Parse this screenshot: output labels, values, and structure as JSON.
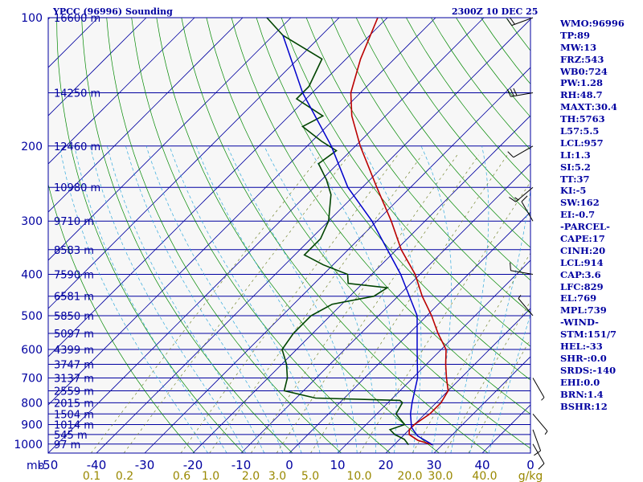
{
  "header": {
    "title": "YPCC (96996) Sounding",
    "datetime": "2300Z 10 DEC 25"
  },
  "indices": [
    "WMO:96996",
    "TP:89",
    "MW:13",
    "FRZ:543",
    "WB0:724",
    "PW:1.28",
    "RH:48.7",
    "MAXT:30.4",
    "TH:5763",
    "L57:5.5",
    "LCL:957",
    "LI:1.3",
    "SI:5.2",
    "TT:37",
    "KI:-5",
    "SW:162",
    "EI:-0.7",
    "-PARCEL-",
    "CAPE:17",
    "CINH:20",
    "LCL:914",
    "CAP:3.6",
    "LFC:829",
    "EL:769",
    "MPL:739",
    "-WIND-",
    "STM:151/7",
    "HEL:-33",
    "SHR-:0.0",
    "SRDS:-140",
    "EHI:0.0",
    "BRN:1.4",
    "BSHR:12"
  ],
  "colors": {
    "isobar": "#0000a0",
    "isotherm": "#0000a0",
    "dry_adiabat": "#008800",
    "moist_adiabat": "#33aadd",
    "mixing_ratio": "#778833",
    "temperature": "#bb0000",
    "dewpoint": "#004400",
    "parcel": "#0000cc",
    "text": "#0000a0",
    "mixing_label": "#998800"
  },
  "chart_data": {
    "type": "line",
    "x_label": "",
    "y_label": "mb",
    "pressure_ticks": [
      100,
      200,
      300,
      400,
      500,
      600,
      700,
      800,
      900,
      1000
    ],
    "temperature_ticks": [
      -50,
      -40,
      -30,
      -20,
      -10,
      0,
      10,
      20,
      30,
      40,
      0
    ],
    "temperature_tick_labels": [
      "-50",
      "-40",
      "-30",
      "-20",
      "-10",
      "0",
      "10",
      "20",
      "30",
      "40",
      "0"
    ],
    "mixing_ratio_labels": [
      "0.1",
      "0.2",
      "0.6",
      "1.0",
      "2.0",
      "3.0",
      "5.0",
      "10.0",
      "20.0",
      "30.0",
      "40.0"
    ],
    "mixing_ratio_unit": "g/kg",
    "height_levels": [
      {
        "p": 100,
        "label": "16600 m"
      },
      {
        "p": 150,
        "label": "14250 m"
      },
      {
        "p": 200,
        "label": "12460 m"
      },
      {
        "p": 250,
        "label": "10980 m"
      },
      {
        "p": 300,
        "label": "9710 m"
      },
      {
        "p": 350,
        "label": "8583 m"
      },
      {
        "p": 400,
        "label": "7590 m"
      },
      {
        "p": 450,
        "label": "6581 m"
      },
      {
        "p": 500,
        "label": "5850 m"
      },
      {
        "p": 550,
        "label": "5097 m"
      },
      {
        "p": 600,
        "label": "4399 m"
      },
      {
        "p": 650,
        "label": "3747 m"
      },
      {
        "p": 700,
        "label": "3137 m"
      },
      {
        "p": 750,
        "label": "2559 m"
      },
      {
        "p": 800,
        "label": "2015 m"
      },
      {
        "p": 850,
        "label": "1504 m"
      },
      {
        "p": 900,
        "label": "1014 m"
      },
      {
        "p": 950,
        "label": "545 m"
      },
      {
        "p": 1000,
        "label": "97 m"
      }
    ],
    "pressure_range_mb": [
      100,
      1050
    ],
    "temperature_range_at_surface": [
      -50,
      50
    ],
    "series": [
      {
        "name": "",
        "points": [
          {
            "p": 1004,
            "t": 28
          },
          {
            "p": 980,
            "t": 24
          },
          {
            "p": 950,
            "t": 21
          },
          {
            "p": 925,
            "t": 20
          },
          {
            "p": 900,
            "t": 20
          },
          {
            "p": 850,
            "t": 21
          },
          {
            "p": 800,
            "t": 21
          },
          {
            "p": 750,
            "t": 20
          },
          {
            "p": 700,
            "t": 17
          },
          {
            "p": 650,
            "t": 14
          },
          {
            "p": 600,
            "t": 11
          },
          {
            "p": 550,
            "t": 6
          },
          {
            "p": 500,
            "t": 1
          },
          {
            "p": 450,
            "t": -5
          },
          {
            "p": 400,
            "t": -11
          },
          {
            "p": 350,
            "t": -19
          },
          {
            "p": 300,
            "t": -27
          },
          {
            "p": 250,
            "t": -37
          },
          {
            "p": 200,
            "t": -49
          },
          {
            "p": 170,
            "t": -57
          },
          {
            "p": 150,
            "t": -62
          },
          {
            "p": 125,
            "t": -67
          },
          {
            "p": 100,
            "t": -72
          }
        ]
      },
      {
        "name": "",
        "points": [
          {
            "p": 1004,
            "t": 23
          },
          {
            "p": 975,
            "t": 21
          },
          {
            "p": 950,
            "t": 18
          },
          {
            "p": 925,
            "t": 16
          },
          {
            "p": 900,
            "t": 18
          },
          {
            "p": 850,
            "t": 14
          },
          {
            "p": 800,
            "t": 13
          },
          {
            "p": 790,
            "t": 12
          },
          {
            "p": 780,
            "t": -6
          },
          {
            "p": 750,
            "t": -14
          },
          {
            "p": 700,
            "t": -16
          },
          {
            "p": 650,
            "t": -19
          },
          {
            "p": 600,
            "t": -23
          },
          {
            "p": 550,
            "t": -24
          },
          {
            "p": 500,
            "t": -24
          },
          {
            "p": 470,
            "t": -22
          },
          {
            "p": 450,
            "t": -15
          },
          {
            "p": 430,
            "t": -14
          },
          {
            "p": 420,
            "t": -23
          },
          {
            "p": 400,
            "t": -25
          },
          {
            "p": 380,
            "t": -32
          },
          {
            "p": 360,
            "t": -38
          },
          {
            "p": 330,
            "t": -38
          },
          {
            "p": 300,
            "t": -40
          },
          {
            "p": 260,
            "t": -45
          },
          {
            "p": 240,
            "t": -49
          },
          {
            "p": 220,
            "t": -54
          },
          {
            "p": 205,
            "t": -53
          },
          {
            "p": 195,
            "t": -58
          },
          {
            "p": 180,
            "t": -65
          },
          {
            "p": 170,
            "t": -63
          },
          {
            "p": 155,
            "t": -72
          },
          {
            "p": 145,
            "t": -72
          },
          {
            "p": 125,
            "t": -75
          },
          {
            "p": 110,
            "t": -88
          },
          {
            "p": 100,
            "t": -95
          }
        ]
      },
      {
        "name": "",
        "points": [
          {
            "p": 1004,
            "t": 28
          },
          {
            "p": 957,
            "t": 23
          },
          {
            "p": 914,
            "t": 20
          },
          {
            "p": 850,
            "t": 17
          },
          {
            "p": 800,
            "t": 15
          },
          {
            "p": 700,
            "t": 11
          },
          {
            "p": 600,
            "t": 5
          },
          {
            "p": 500,
            "t": -2
          },
          {
            "p": 400,
            "t": -14
          },
          {
            "p": 300,
            "t": -31
          },
          {
            "p": 250,
            "t": -43
          },
          {
            "p": 200,
            "t": -55
          },
          {
            "p": 150,
            "t": -72
          },
          {
            "p": 110,
            "t": -88
          }
        ]
      }
    ],
    "wind_barbs": [
      {
        "p": 100,
        "dir": 250,
        "kt": 20
      },
      {
        "p": 150,
        "dir": 260,
        "kt": 30
      },
      {
        "p": 200,
        "dir": 240,
        "kt": 10
      },
      {
        "p": 250,
        "dir": 230,
        "kt": 15
      },
      {
        "p": 300,
        "dir": 330,
        "kt": 10
      },
      {
        "p": 400,
        "dir": 280,
        "kt": 10
      },
      {
        "p": 500,
        "dir": 320,
        "kt": 5
      },
      {
        "p": 700,
        "dir": 150,
        "kt": 5
      },
      {
        "p": 850,
        "dir": 140,
        "kt": 5
      },
      {
        "p": 925,
        "dir": 160,
        "kt": 10
      },
      {
        "p": 1000,
        "dir": 150,
        "kt": 10
      }
    ]
  }
}
